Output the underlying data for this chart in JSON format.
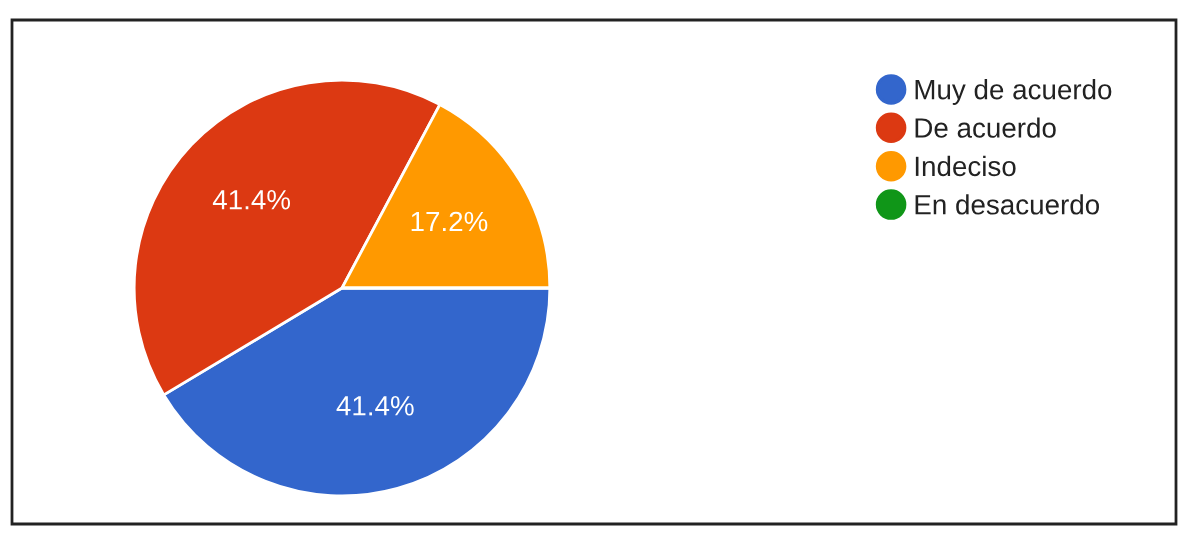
{
  "chart_data": {
    "type": "pie",
    "categories": [
      "Muy de acuerdo",
      "De acuerdo",
      "Indeciso",
      "En desacuerdo"
    ],
    "values": [
      41.4,
      41.4,
      17.2,
      0
    ],
    "colors": [
      "#3366cc",
      "#dc3912",
      "#ff9900",
      "#109618"
    ],
    "value_labels": [
      "41.4%",
      "41.4%",
      "17.2%",
      null
    ],
    "legend": "right"
  }
}
